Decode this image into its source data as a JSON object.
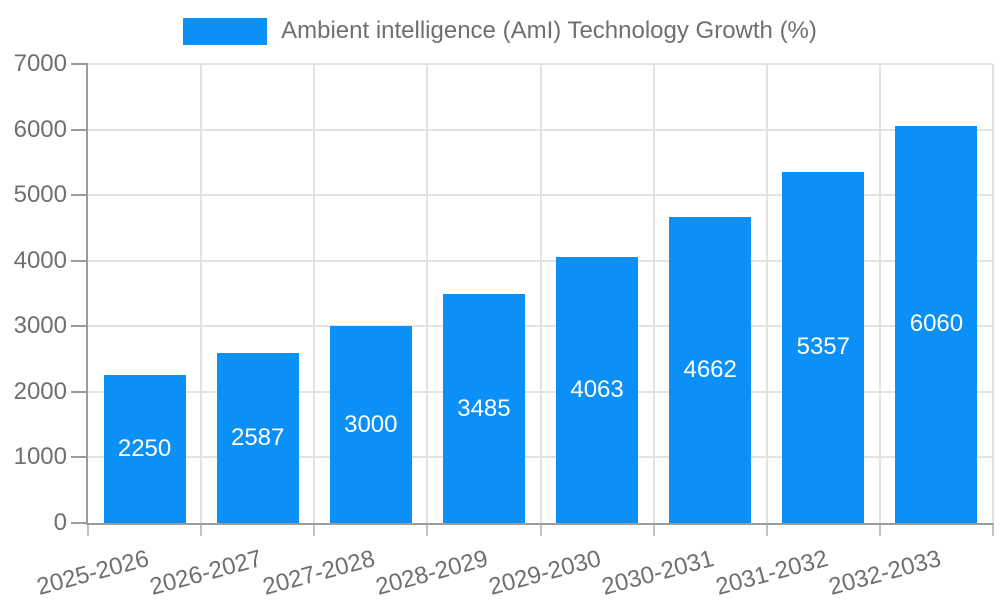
{
  "colors": {
    "bar": "#0a90f6",
    "grid": "#e3e3e3",
    "axis": "#9b9b9b",
    "minor_tick": "#c2c2c2",
    "text": "#6f6f6f",
    "bar_label": "#ffffff",
    "background": "#ffffff"
  },
  "legend": {
    "label": "Ambient intelligence (AmI) Technology Growth (%)"
  },
  "chart_data": {
    "type": "bar",
    "title": "Ambient intelligence (AmI) Technology Growth (%)",
    "series_name": "Ambient intelligence (AmI) Technology Growth (%)",
    "categories": [
      "2025-2026",
      "2026-2027",
      "2027-2028",
      "2028-2029",
      "2029-2030",
      "2030-2031",
      "2031-2032",
      "2032-2033"
    ],
    "values": [
      2250,
      2587,
      3000,
      3485,
      4063,
      4662,
      5357,
      6060
    ],
    "value_labels": [
      "2250",
      "2587",
      "3000",
      "3485",
      "4063",
      "4662",
      "5357",
      "6060"
    ],
    "xlabel": "",
    "ylabel": "",
    "ylim": [
      0,
      7000
    ],
    "ytick_step": 1000,
    "ytick_labels": [
      "0",
      "1000",
      "2000",
      "3000",
      "4000",
      "5000",
      "6000",
      "7000"
    ],
    "grid": true,
    "legend_position": "top",
    "value_label_position": "inside-center"
  }
}
